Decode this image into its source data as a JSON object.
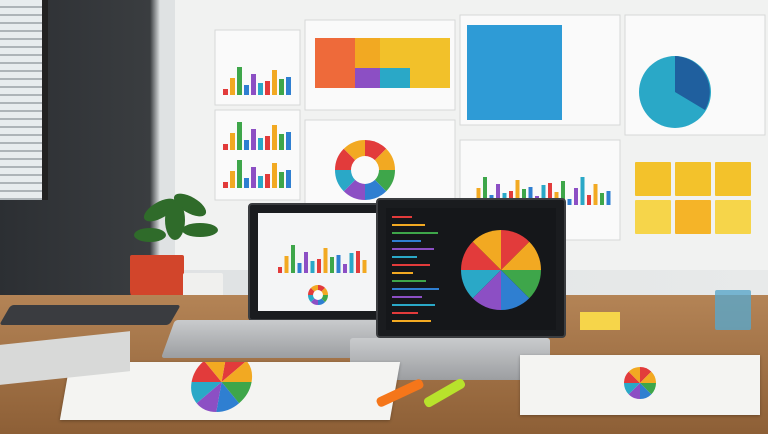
{
  "scene": {
    "accent_colors": [
      "#e23b3b",
      "#f2a922",
      "#3ea64a",
      "#2f7fd1",
      "#8c4fc4",
      "#2aa8c7"
    ],
    "wall_color": "#e8eaea",
    "desk_color": "#b48456",
    "sticky_note_color": "#f3c22b",
    "pot_color": "#d2452b",
    "highlighter_colors": [
      "#f5761a",
      "#b8e22c"
    ]
  }
}
